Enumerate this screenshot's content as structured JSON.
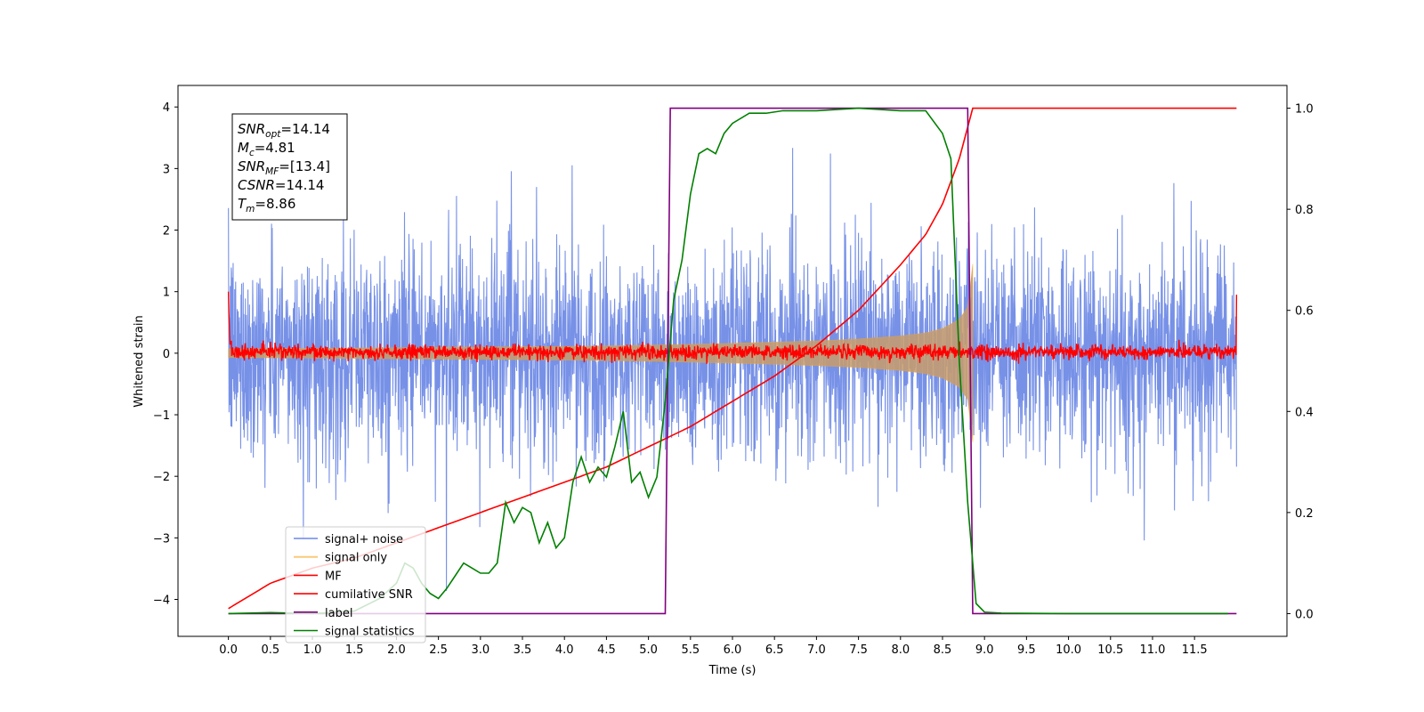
{
  "chart_data": {
    "type": "line",
    "title": "",
    "xlabel": "Time (s)",
    "ylabel": "Whitened strain",
    "xlim": [
      -0.6,
      12.6
    ],
    "ylim": [
      -4.6,
      4.35
    ],
    "y2lim": [
      -0.045,
      1.045
    ],
    "xticks": [
      "0.0",
      "0.5",
      "1.0",
      "1.5",
      "2.0",
      "2.5",
      "3.0",
      "3.5",
      "4.0",
      "4.5",
      "5.0",
      "5.5",
      "6.0",
      "6.5",
      "7.0",
      "7.5",
      "8.0",
      "8.5",
      "9.0",
      "9.5",
      "10.0",
      "10.5",
      "11.0",
      "11.5"
    ],
    "yticks": [
      "−4",
      "−3",
      "−2",
      "−1",
      "0",
      "1",
      "2",
      "3",
      "4"
    ],
    "y2ticks": [
      "0.0",
      "0.2",
      "0.4",
      "0.6",
      "0.8",
      "1.0"
    ],
    "legend_position": "lower-left",
    "annotation": [
      {
        "sym": "SNR",
        "sub": "opt",
        "val": "=14.14"
      },
      {
        "sym": "M",
        "sub": "c",
        "val": "=4.81"
      },
      {
        "sym": "SNR",
        "sub": "MF",
        "val": "=[13.4]"
      },
      {
        "sym": "CSNR",
        "sub": "",
        "val": "=14.14"
      },
      {
        "sym": "T",
        "sub": "m",
        "val": "=8.86"
      }
    ],
    "series": [
      {
        "name": "signal+ noise",
        "color": "#6b88e5",
        "axis": "left",
        "x_range": [
          0.0,
          12.0
        ],
        "amplitude_std": 1.0,
        "y_min": -4.1,
        "y_max": 3.97
      },
      {
        "name": "signal only",
        "color": "#f5a623",
        "axis": "left",
        "x": [
          0.0,
          1.0,
          2.0,
          3.0,
          4.0,
          5.0,
          6.0,
          7.0,
          7.5,
          8.0,
          8.3,
          8.5,
          8.7,
          8.8,
          8.86
        ],
        "envelope": [
          0.07,
          0.08,
          0.09,
          0.1,
          0.11,
          0.13,
          0.16,
          0.2,
          0.23,
          0.28,
          0.33,
          0.4,
          0.55,
          0.75,
          1.45
        ]
      },
      {
        "name": "MF",
        "color": "#ff0000",
        "axis": "left",
        "x_range": [
          0.0,
          12.0
        ],
        "center": 0.02,
        "amplitude": 0.13,
        "start_value": 1.0,
        "end_value": 0.95
      },
      {
        "name": "cumilative SNR",
        "color": "#ff0000",
        "axis": "right",
        "x": [
          0.0,
          0.5,
          1.0,
          1.5,
          2.0,
          2.5,
          3.0,
          3.5,
          4.0,
          4.5,
          5.0,
          5.5,
          6.0,
          6.5,
          7.0,
          7.5,
          8.0,
          8.3,
          8.5,
          8.7,
          8.86,
          9.0,
          12.0
        ],
        "y": [
          0.01,
          0.06,
          0.09,
          0.11,
          0.14,
          0.17,
          0.2,
          0.23,
          0.26,
          0.29,
          0.33,
          0.37,
          0.42,
          0.47,
          0.53,
          0.6,
          0.69,
          0.75,
          0.81,
          0.9,
          1.0,
          1.0,
          1.0
        ]
      },
      {
        "name": "label",
        "color": "#800080",
        "axis": "right",
        "x": [
          0.0,
          5.2,
          5.26,
          8.8,
          8.86,
          12.0
        ],
        "y": [
          0.0,
          0.0,
          1.0,
          1.0,
          0.0,
          0.0
        ]
      },
      {
        "name": "signal statistics",
        "color": "#008000",
        "axis": "right",
        "x": [
          0.0,
          0.5,
          1.0,
          1.5,
          1.8,
          2.0,
          2.1,
          2.2,
          2.3,
          2.4,
          2.5,
          2.6,
          2.8,
          2.9,
          3.0,
          3.1,
          3.2,
          3.3,
          3.4,
          3.5,
          3.6,
          3.7,
          3.8,
          3.9,
          4.0,
          4.1,
          4.2,
          4.3,
          4.4,
          4.5,
          4.6,
          4.7,
          4.8,
          4.9,
          5.0,
          5.1,
          5.2,
          5.3,
          5.4,
          5.5,
          5.6,
          5.7,
          5.8,
          5.9,
          6.0,
          6.2,
          6.4,
          6.6,
          6.8,
          7.0,
          7.5,
          8.0,
          8.3,
          8.5,
          8.6,
          8.7,
          8.8,
          8.9,
          9.0,
          9.2,
          10.0,
          11.0,
          11.9
        ],
        "y": [
          0.0,
          0.002,
          0.0,
          0.005,
          0.03,
          0.06,
          0.1,
          0.09,
          0.06,
          0.04,
          0.03,
          0.05,
          0.1,
          0.09,
          0.08,
          0.08,
          0.1,
          0.22,
          0.18,
          0.21,
          0.2,
          0.14,
          0.18,
          0.13,
          0.15,
          0.26,
          0.31,
          0.26,
          0.29,
          0.27,
          0.33,
          0.4,
          0.26,
          0.28,
          0.23,
          0.27,
          0.42,
          0.62,
          0.7,
          0.83,
          0.91,
          0.92,
          0.91,
          0.95,
          0.97,
          0.99,
          0.99,
          0.995,
          0.995,
          0.995,
          1.0,
          0.995,
          0.995,
          0.95,
          0.9,
          0.5,
          0.22,
          0.02,
          0.003,
          0.001,
          0.0,
          0.0,
          0.0
        ]
      }
    ]
  }
}
